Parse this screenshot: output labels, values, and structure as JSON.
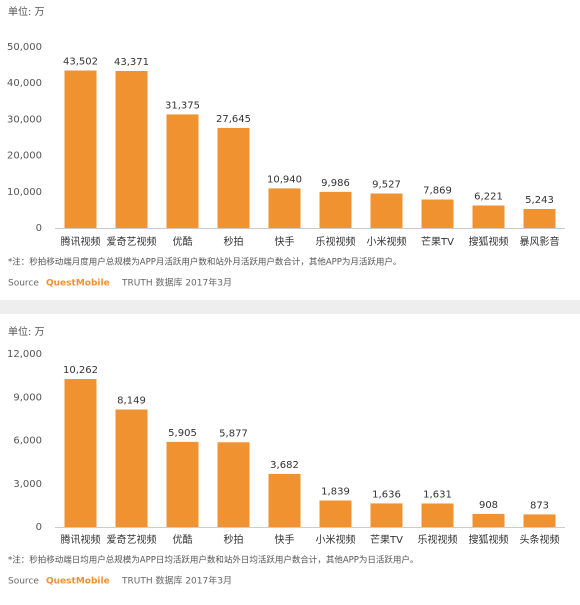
{
  "chart_data": [
    {
      "type": "bar",
      "unit": "单位: 万",
      "categories": [
        "腾讯视频",
        "爱奇艺视频",
        "优酷",
        "秒拍",
        "快手",
        "乐视视频",
        "小米视频",
        "芒果TV",
        "搜狐视频",
        "暴风影音"
      ],
      "values": [
        43502,
        43371,
        31375,
        27645,
        10940,
        9986,
        9527,
        7869,
        6221,
        5243
      ],
      "value_labels": [
        "43,502",
        "43,371",
        "31,375",
        "27,645",
        "10,940",
        "9,986",
        "9,527",
        "7,869",
        "6,221",
        "5,243"
      ],
      "color": "#f0922f",
      "ylim": [
        0,
        50000
      ],
      "yticks": [
        0,
        {
          "value": 10000,
          "label": "10,000"
        },
        {
          "value": 20000,
          "label": "20,000"
        },
        {
          "value": 30000,
          "label": "30,000"
        },
        {
          "value": 40000,
          "label": "40,000"
        },
        {
          "value": 50000,
          "label": "50,000"
        }
      ],
      "note": "*注：秒拍移动端月度用户总规模为APP月活跃用户数和站外月活跃用户数合计，其他APP为月活跃用户。",
      "source": {
        "label": "Source",
        "brand": "QuestMobile",
        "text": "TRUTH 数据库 2017年3月"
      }
    },
    {
      "type": "bar",
      "unit": "单位: 万",
      "categories": [
        "腾讯视频",
        "爱奇艺视频",
        "优酷",
        "秒拍",
        "快手",
        "小米视频",
        "芒果TV",
        "乐视视频",
        "搜狐视频",
        "头条视频"
      ],
      "values": [
        10262,
        8149,
        5905,
        5877,
        3682,
        1839,
        1636,
        1631,
        908,
        873
      ],
      "value_labels": [
        "10,262",
        "8,149",
        "5,905",
        "5,877",
        "3,682",
        "1,839",
        "1,636",
        "1,631",
        "908",
        "873"
      ],
      "color": "#f0922f",
      "ylim": [
        0,
        12000
      ],
      "yticks": [
        0,
        {
          "value": 3000,
          "label": "3,000"
        },
        {
          "value": 6000,
          "label": "6,000"
        },
        {
          "value": 9000,
          "label": "9,000"
        },
        {
          "value": 12000,
          "label": "12,000"
        }
      ],
      "note": "*注：秒拍移动端日均用户总规模为APP日均活跃用户数和站外日均活跃用户数合计，其他APP为日活跃用户。",
      "source": {
        "label": "Source",
        "brand": "QuestMobile",
        "text": "TRUTH 数据库 2017年3月"
      }
    }
  ]
}
